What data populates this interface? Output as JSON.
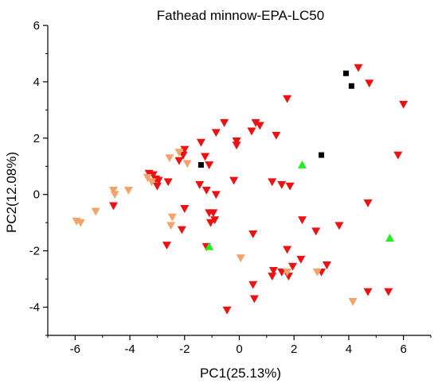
{
  "chart_data": {
    "type": "scatter",
    "title": "Fathead minnow-EPA-LC50",
    "xlabel": "PC1(25.13%)",
    "ylabel": "PC2(12.08%)",
    "xlim": [
      -7,
      7
    ],
    "ylim": [
      -5,
      6
    ],
    "xticks": [
      -6,
      -4,
      -2,
      0,
      2,
      4,
      6
    ],
    "xtick_labels": [
      "-6",
      "-4",
      "-2",
      "0",
      "2",
      "4",
      "6"
    ],
    "yticks": [
      -4,
      -2,
      0,
      2,
      4,
      6
    ],
    "ytick_labels": [
      "-4",
      "-2",
      "0",
      "2",
      "4",
      "6"
    ],
    "grid": false,
    "legend": "none",
    "series": [
      {
        "marker": "triangle-down",
        "color": "#ee1111",
        "points": [
          [
            4.35,
            4.5
          ],
          [
            4.75,
            3.95
          ],
          [
            6.0,
            3.2
          ],
          [
            1.75,
            3.4
          ],
          [
            5.8,
            1.4
          ],
          [
            0.6,
            2.55
          ],
          [
            0.75,
            2.45
          ],
          [
            0.45,
            2.25
          ],
          [
            1.35,
            2.1
          ],
          [
            -0.55,
            2.55
          ],
          [
            -0.1,
            1.9
          ],
          [
            -0.1,
            1.75
          ],
          [
            -0.85,
            2.2
          ],
          [
            -1.4,
            1.85
          ],
          [
            -2.0,
            1.6
          ],
          [
            -2.05,
            1.4
          ],
          [
            -2.2,
            1.2
          ],
          [
            -1.25,
            1.35
          ],
          [
            -1.1,
            1.05
          ],
          [
            -3.3,
            0.75
          ],
          [
            -3.15,
            0.7
          ],
          [
            -3.05,
            0.55
          ],
          [
            -2.95,
            0.5
          ],
          [
            -2.6,
            0.45
          ],
          [
            -3.0,
            0.3
          ],
          [
            -1.45,
            0.35
          ],
          [
            -1.2,
            0.15
          ],
          [
            -0.85,
            0.0
          ],
          [
            -0.2,
            0.5
          ],
          [
            1.2,
            0.45
          ],
          [
            1.55,
            0.35
          ],
          [
            1.85,
            0.3
          ],
          [
            -4.6,
            -0.4
          ],
          [
            -2.0,
            -0.5
          ],
          [
            -1.1,
            -0.65
          ],
          [
            -0.95,
            -0.65
          ],
          [
            -0.9,
            -0.9
          ],
          [
            -1.05,
            -1.0
          ],
          [
            -2.1,
            -1.25
          ],
          [
            -2.65,
            -1.8
          ],
          [
            -1.2,
            -1.85
          ],
          [
            0.5,
            -1.4
          ],
          [
            2.3,
            -0.9
          ],
          [
            2.8,
            -1.3
          ],
          [
            3.65,
            -1.1
          ],
          [
            4.7,
            -0.3
          ],
          [
            1.75,
            -1.95
          ],
          [
            2.25,
            -2.3
          ],
          [
            1.95,
            -2.55
          ],
          [
            1.25,
            -2.7
          ],
          [
            1.55,
            -2.75
          ],
          [
            1.2,
            -2.9
          ],
          [
            1.8,
            -2.9
          ],
          [
            3.2,
            -2.5
          ],
          [
            3.0,
            -2.75
          ],
          [
            0.5,
            -3.2
          ],
          [
            0.55,
            -3.7
          ],
          [
            -0.45,
            -4.1
          ],
          [
            4.7,
            -3.45
          ],
          [
            5.45,
            -3.45
          ]
        ]
      },
      {
        "marker": "triangle-down",
        "color": "#f4a46a",
        "points": [
          [
            -2.2,
            1.5
          ],
          [
            -2.55,
            1.3
          ],
          [
            -1.9,
            1.1
          ],
          [
            -3.35,
            0.6
          ],
          [
            -3.2,
            0.45
          ],
          [
            -4.05,
            0.15
          ],
          [
            -4.6,
            0.15
          ],
          [
            -4.55,
            0.0
          ],
          [
            -5.25,
            -0.6
          ],
          [
            -5.8,
            -1.0
          ],
          [
            -5.95,
            -0.95
          ],
          [
            -2.45,
            -0.8
          ],
          [
            -2.5,
            -1.1
          ],
          [
            0.05,
            -2.25
          ],
          [
            1.75,
            -2.75
          ],
          [
            2.85,
            -2.75
          ],
          [
            4.15,
            -3.8
          ]
        ]
      },
      {
        "marker": "square",
        "color": "#000000",
        "points": [
          [
            3.9,
            4.3
          ],
          [
            4.1,
            3.85
          ],
          [
            3.0,
            1.4
          ],
          [
            -1.4,
            1.05
          ]
        ]
      },
      {
        "marker": "triangle-up",
        "color": "#22ee22",
        "points": [
          [
            2.3,
            1.05
          ],
          [
            -1.1,
            -1.85
          ],
          [
            5.5,
            -1.55
          ]
        ]
      }
    ]
  }
}
